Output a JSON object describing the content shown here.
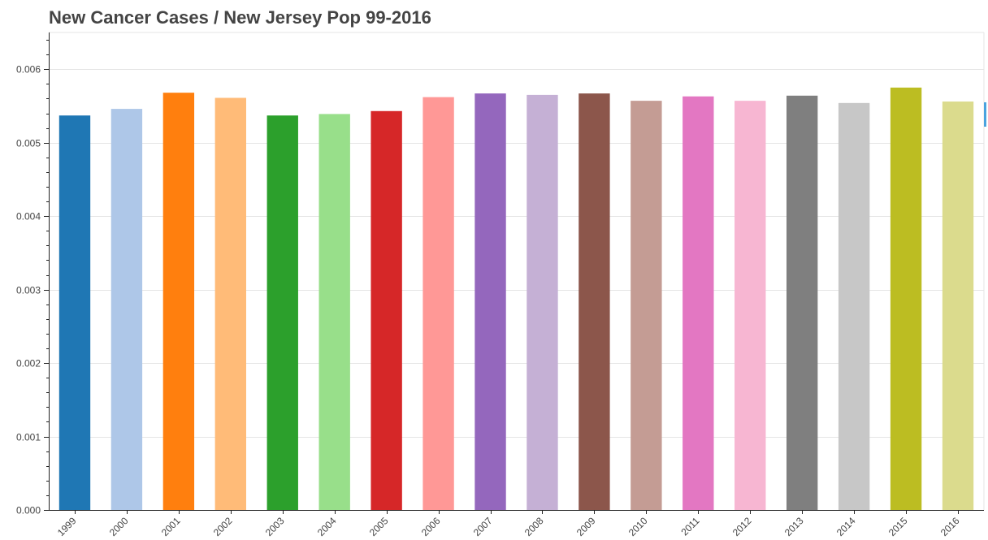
{
  "chart_data": {
    "type": "bar",
    "title": "New Cancer Cases / New Jersey Pop 99-2016",
    "xlabel": "",
    "ylabel": "",
    "categories": [
      "1999",
      "2000",
      "2001",
      "2002",
      "2003",
      "2004",
      "2005",
      "2006",
      "2007",
      "2008",
      "2009",
      "2010",
      "2011",
      "2012",
      "2013",
      "2014",
      "2015",
      "2016"
    ],
    "values": [
      0.00537,
      0.00546,
      0.00568,
      0.00561,
      0.00537,
      0.00539,
      0.00543,
      0.00562,
      0.00567,
      0.00565,
      0.00567,
      0.00557,
      0.00563,
      0.00557,
      0.00564,
      0.00554,
      0.00575,
      0.00556
    ],
    "colors": [
      "#1f77b4",
      "#aec7e8",
      "#ff7f0e",
      "#ffbb78",
      "#2ca02c",
      "#98df8a",
      "#d62728",
      "#ff9896",
      "#9467bd",
      "#c5b0d5",
      "#8c564b",
      "#c49c94",
      "#e377c2",
      "#f7b6d2",
      "#7f7f7f",
      "#c7c7c7",
      "#bcbd22",
      "#dbdb8d"
    ],
    "ylim": [
      0,
      0.0065
    ],
    "yticks": [
      "0.000",
      "0.001",
      "0.002",
      "0.003",
      "0.004",
      "0.005",
      "0.006"
    ],
    "grid": true,
    "legend": "none"
  }
}
